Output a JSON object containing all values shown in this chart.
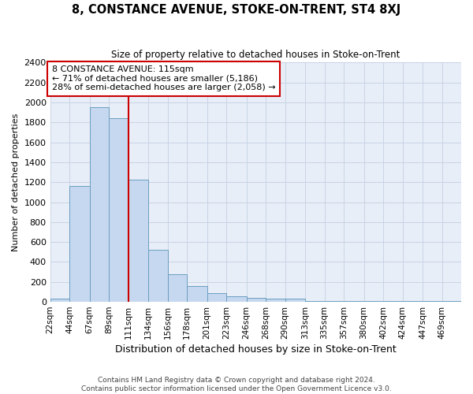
{
  "title": "8, CONSTANCE AVENUE, STOKE-ON-TRENT, ST4 8XJ",
  "subtitle": "Size of property relative to detached houses in Stoke-on-Trent",
  "xlabel": "Distribution of detached houses by size in Stoke-on-Trent",
  "ylabel": "Number of detached properties",
  "annotation_line1": "8 CONSTANCE AVENUE: 115sqm",
  "annotation_line2": "← 71% of detached houses are smaller (5,186)",
  "annotation_line3": "28% of semi-detached houses are larger (2,058) →",
  "footer_line1": "Contains HM Land Registry data © Crown copyright and database right 2024.",
  "footer_line2": "Contains public sector information licensed under the Open Government Licence v3.0.",
  "bar_color": "#c6d8ef",
  "bar_edge_color": "#6a9ec0",
  "grid_color": "#c8d4e4",
  "bg_color": "#e8eef8",
  "annotation_line_color": "#cc0000",
  "annotation_box_edge_color": "#cc0000",
  "property_line_x": 111,
  "bin_edges": [
    22,
    44,
    67,
    89,
    111,
    134,
    156,
    178,
    201,
    223,
    246,
    268,
    290,
    313,
    335,
    357,
    380,
    402,
    424,
    447,
    469,
    491
  ],
  "categories": [
    "22sqm",
    "44sqm",
    "67sqm",
    "89sqm",
    "111sqm",
    "134sqm",
    "156sqm",
    "178sqm",
    "201sqm",
    "223sqm",
    "246sqm",
    "268sqm",
    "290sqm",
    "313sqm",
    "335sqm",
    "357sqm",
    "380sqm",
    "402sqm",
    "424sqm",
    "447sqm",
    "469sqm"
  ],
  "values": [
    30,
    1160,
    1950,
    1840,
    1225,
    520,
    275,
    155,
    85,
    55,
    40,
    35,
    35,
    8,
    5,
    5,
    5,
    5,
    5,
    5,
    5
  ],
  "ylim": [
    0,
    2400
  ],
  "yticks": [
    0,
    200,
    400,
    600,
    800,
    1000,
    1200,
    1400,
    1600,
    1800,
    2000,
    2200,
    2400
  ]
}
